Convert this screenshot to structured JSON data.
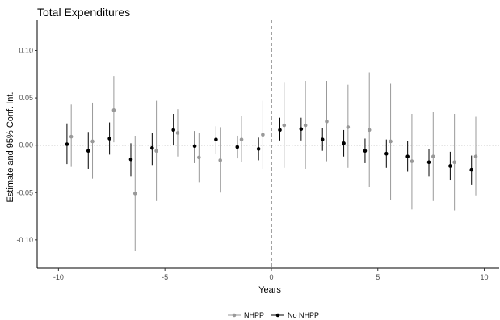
{
  "chart_data": {
    "type": "scatter",
    "title": "Total Expenditures",
    "xlabel": "Years",
    "ylabel": "Estimate and 95% Conf. Int.",
    "xlim": [
      -11.0,
      10.7
    ],
    "ylim": [
      -0.13,
      0.132
    ],
    "x_ticks": [
      -10,
      -5,
      0,
      5,
      10
    ],
    "x_tick_labels": [
      "-10",
      "-5",
      "0",
      "5",
      "10"
    ],
    "y_ticks": [
      0.1,
      0.05,
      0.0,
      -0.05,
      -0.1
    ],
    "y_tick_labels": [
      "0.10",
      "0.05",
      "0.00",
      "-0.05",
      "-0.10"
    ],
    "reference_lines": {
      "x": 0,
      "y": 0
    },
    "grid": false,
    "legend_position": "bottom",
    "series": [
      {
        "name": "NHPP",
        "color": "#999999",
        "x": [
          -9.4,
          -8.4,
          -7.4,
          -6.4,
          -5.4,
          -4.4,
          -3.4,
          -2.4,
          -1.4,
          -0.4,
          0.6,
          1.6,
          2.6,
          3.6,
          4.6,
          5.6,
          6.6,
          7.6,
          8.6,
          9.6
        ],
        "y": [
          0.009,
          0.004,
          0.037,
          -0.051,
          -0.006,
          0.013,
          -0.013,
          -0.016,
          0.006,
          0.011,
          0.021,
          0.021,
          0.025,
          0.019,
          0.016,
          0.004,
          -0.017,
          -0.012,
          -0.018,
          -0.012
        ],
        "lower": [
          -0.023,
          -0.035,
          0.003,
          -0.112,
          -0.059,
          -0.012,
          -0.039,
          -0.05,
          -0.018,
          -0.025,
          -0.024,
          -0.025,
          -0.017,
          -0.024,
          -0.044,
          -0.058,
          -0.068,
          -0.059,
          -0.069,
          -0.053
        ],
        "upper": [
          0.043,
          0.045,
          0.073,
          0.01,
          0.047,
          0.038,
          0.013,
          0.019,
          0.031,
          0.047,
          0.066,
          0.068,
          0.068,
          0.064,
          0.077,
          0.065,
          0.033,
          0.035,
          0.033,
          0.03
        ]
      },
      {
        "name": "No NHPP",
        "color": "#000000",
        "x": [
          -9.6,
          -8.6,
          -7.6,
          -6.6,
          -5.6,
          -4.6,
          -3.6,
          -2.6,
          -1.6,
          -0.6,
          0.4,
          1.4,
          2.4,
          3.4,
          4.4,
          5.4,
          6.4,
          7.4,
          8.4,
          9.4
        ],
        "y": [
          0.001,
          -0.006,
          0.007,
          -0.015,
          -0.003,
          0.016,
          -0.001,
          0.006,
          -0.002,
          -0.004,
          0.016,
          0.017,
          0.006,
          0.002,
          -0.006,
          -0.009,
          -0.012,
          -0.018,
          -0.022,
          -0.026
        ],
        "lower": [
          -0.02,
          -0.025,
          -0.01,
          -0.033,
          -0.021,
          0.0,
          -0.019,
          -0.009,
          -0.014,
          -0.016,
          0.005,
          0.005,
          -0.006,
          -0.012,
          -0.019,
          -0.024,
          -0.028,
          -0.033,
          -0.037,
          -0.042
        ],
        "upper": [
          0.023,
          0.014,
          0.024,
          0.002,
          0.013,
          0.033,
          0.015,
          0.02,
          0.01,
          0.008,
          0.029,
          0.029,
          0.018,
          0.016,
          0.007,
          0.006,
          0.004,
          -0.004,
          -0.007,
          -0.011
        ]
      }
    ]
  }
}
